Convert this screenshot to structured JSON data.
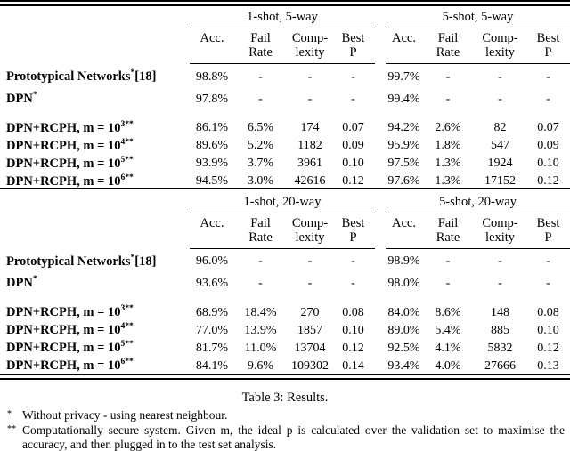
{
  "table": {
    "columns": {
      "acc": "Acc.",
      "fail_line1": "Fail",
      "fail_line2": "Rate",
      "comp_line1": "Comp-",
      "comp_line2": "lexity",
      "best_line1": "Best",
      "best_line2": "P"
    },
    "panels": [
      {
        "group1": "1-shot, 5-way",
        "group2": "5-shot, 5-way",
        "rows": [
          {
            "label": "Prototypical Networks",
            "sup": "*",
            "suffix": "[18]",
            "cells": [
              "98.8%",
              "-",
              "-",
              "-",
              "99.7%",
              "-",
              "-",
              "-"
            ]
          },
          {
            "label": "DPN",
            "sup": "*",
            "suffix": "",
            "cells": [
              "97.8%",
              "-",
              "-",
              "-",
              "99.4%",
              "-",
              "-",
              "-"
            ]
          },
          {
            "label": "DPN+RCPH, m = 10",
            "sup": "3**",
            "suffix": "",
            "cells": [
              "86.1%",
              "6.5%",
              "174",
              "0.07",
              "94.2%",
              "2.6%",
              "82",
              "0.07"
            ]
          },
          {
            "label": "DPN+RCPH, m = 10",
            "sup": "4**",
            "suffix": "",
            "cells": [
              "89.6%",
              "5.2%",
              "1182",
              "0.09",
              "95.9%",
              "1.8%",
              "547",
              "0.09"
            ]
          },
          {
            "label": "DPN+RCPH, m = 10",
            "sup": "5**",
            "suffix": "",
            "cells": [
              "93.9%",
              "3.7%",
              "3961",
              "0.10",
              "97.5%",
              "1.3%",
              "1924",
              "0.10"
            ]
          },
          {
            "label": "DPN+RCPH, m = 10",
            "sup": "6**",
            "suffix": "",
            "cells": [
              "94.5%",
              "3.0%",
              "42616",
              "0.12",
              "97.6%",
              "1.3%",
              "17152",
              "0.12"
            ]
          }
        ]
      },
      {
        "group1": "1-shot, 20-way",
        "group2": "5-shot, 20-way",
        "rows": [
          {
            "label": "Prototypical Networks",
            "sup": "*",
            "suffix": "[18]",
            "cells": [
              "96.0%",
              "-",
              "-",
              "-",
              "98.9%",
              "-",
              "-",
              "-"
            ]
          },
          {
            "label": "DPN",
            "sup": "*",
            "suffix": "",
            "cells": [
              "93.6%",
              "-",
              "-",
              "-",
              "98.0%",
              "-",
              "-",
              "-"
            ]
          },
          {
            "label": "DPN+RCPH, m = 10",
            "sup": "3**",
            "suffix": "",
            "cells": [
              "68.9%",
              "18.4%",
              "270",
              "0.08",
              "84.0%",
              "8.6%",
              "148",
              "0.08"
            ]
          },
          {
            "label": "DPN+RCPH, m = 10",
            "sup": "4**",
            "suffix": "",
            "cells": [
              "77.0%",
              "13.9%",
              "1857",
              "0.10",
              "89.0%",
              "5.4%",
              "885",
              "0.10"
            ]
          },
          {
            "label": "DPN+RCPH, m = 10",
            "sup": "5**",
            "suffix": "",
            "cells": [
              "81.7%",
              "11.0%",
              "13704",
              "0.12",
              "92.5%",
              "4.1%",
              "5832",
              "0.12"
            ]
          },
          {
            "label": "DPN+RCPH, m = 10",
            "sup": "6**",
            "suffix": "",
            "cells": [
              "84.1%",
              "9.6%",
              "109302",
              "0.14",
              "93.4%",
              "4.0%",
              "27666",
              "0.13"
            ]
          }
        ]
      }
    ]
  },
  "caption": "Table 3: Results.",
  "footnotes": [
    {
      "marker": "*",
      "text": "Without privacy - using nearest neighbour."
    },
    {
      "marker": "**",
      "text": "Computationally secure system. Given m, the ideal p is calculated over the validation set to maximise the accuracy, and then plugged in to the test set analysis."
    }
  ]
}
